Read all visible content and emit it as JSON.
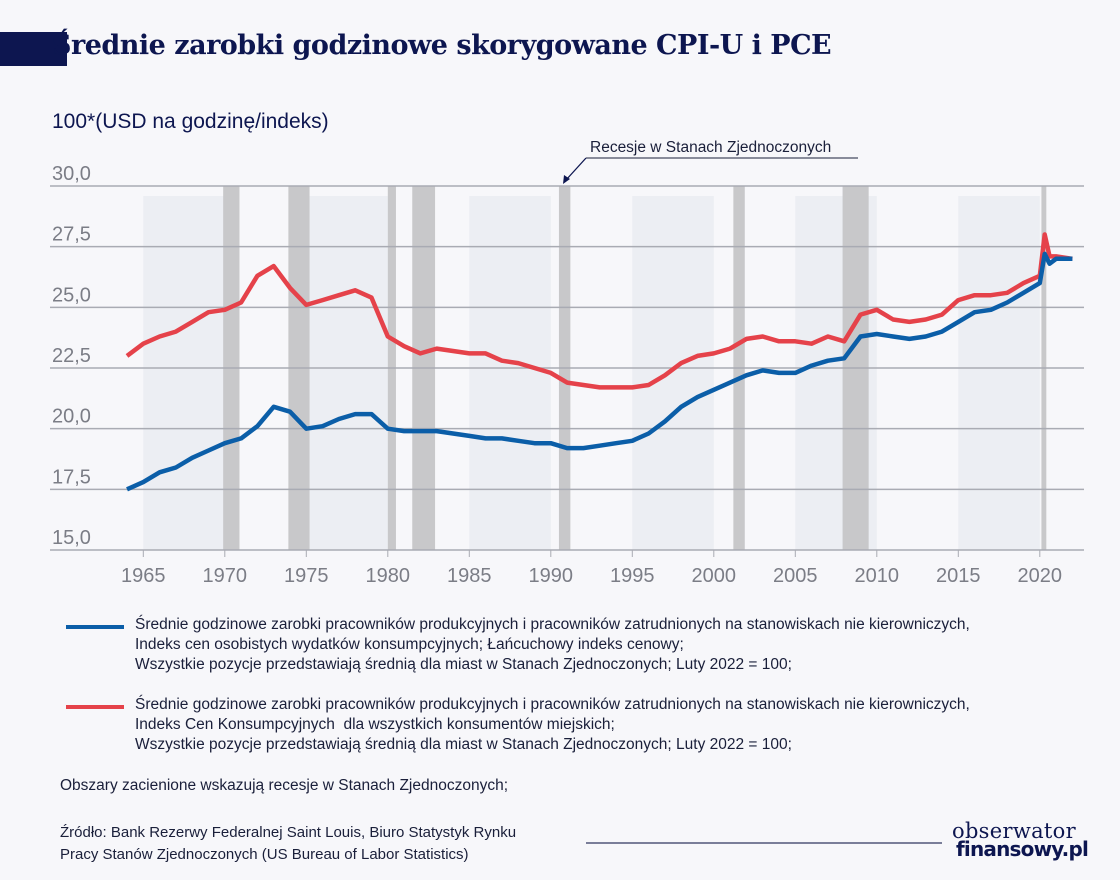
{
  "title": "Średnie zarobki godzinowe skorygowane CPI-U i PCE",
  "colors": {
    "title": "#0d1650",
    "cpi_series": "#e5424a",
    "pce_series": "#0b5ea8",
    "recession": "#c8c8ca",
    "band": "#eceef3"
  },
  "chart_data": {
    "type": "line",
    "title": "Średnie zarobki godzinowe skorygowane CPI-U i PCE",
    "ylabel": "100*(USD na godzinę/indeks)",
    "xlabel": "",
    "xlim": [
      1963.6,
      2023.5
    ],
    "ylim": [
      15.0,
      30.0
    ],
    "yticks": [
      "15,0",
      "17,5",
      "20,0",
      "22,5",
      "25,0",
      "27,5",
      "30,0"
    ],
    "ytick_values": [
      15,
      17.5,
      20,
      22.5,
      25,
      27.5,
      30
    ],
    "xticks": [
      "1965",
      "1970",
      "1975",
      "1980",
      "1985",
      "1990",
      "1995",
      "2000",
      "2005",
      "2010",
      "2015",
      "2020"
    ],
    "xtick_values": [
      1965,
      1970,
      1975,
      1980,
      1985,
      1990,
      1995,
      2000,
      2005,
      2010,
      2015,
      2020
    ],
    "grid": true,
    "legend_placement": "bottom",
    "annotation": "Recesje w Stanach Zjednoczonych",
    "recessions": [
      [
        1969.9,
        1970.9
      ],
      [
        1973.9,
        1975.2
      ],
      [
        1980.0,
        1980.5
      ],
      [
        1981.5,
        1982.9
      ],
      [
        1990.5,
        1991.2
      ],
      [
        2001.2,
        2001.9
      ],
      [
        2007.9,
        2009.5
      ],
      [
        2020.1,
        2020.4
      ]
    ],
    "series": [
      {
        "name": "Średnie godzinowe zarobki pracowników produkcyjnych i pracowników zatrudnionych na stanowiskach nie kierowniczych, Indeks Cen Konsumpcyjnych dla wszystkich konsumentów miejskich",
        "color": "#e5424a",
        "x": [
          1964,
          1965,
          1966,
          1967,
          1968,
          1969,
          1970,
          1971,
          1972,
          1973,
          1974,
          1975,
          1976,
          1977,
          1978,
          1979,
          1980,
          1981,
          1982,
          1983,
          1984,
          1985,
          1986,
          1987,
          1988,
          1989,
          1990,
          1991,
          1992,
          1993,
          1994,
          1995,
          1996,
          1997,
          1998,
          1999,
          2000,
          2001,
          2002,
          2003,
          2004,
          2005,
          2006,
          2007,
          2008,
          2009,
          2010,
          2011,
          2012,
          2013,
          2014,
          2015,
          2016,
          2017,
          2018,
          2019,
          2020,
          2020.3,
          2020.6,
          2021,
          2022
        ],
        "y": [
          23.0,
          23.5,
          23.8,
          24.0,
          24.4,
          24.8,
          24.9,
          25.2,
          26.3,
          26.7,
          25.8,
          25.1,
          25.3,
          25.5,
          25.7,
          25.4,
          23.8,
          23.4,
          23.1,
          23.3,
          23.2,
          23.1,
          23.1,
          22.8,
          22.7,
          22.5,
          22.3,
          21.9,
          21.8,
          21.7,
          21.7,
          21.7,
          21.8,
          22.2,
          22.7,
          23.0,
          23.1,
          23.3,
          23.7,
          23.8,
          23.6,
          23.6,
          23.5,
          23.8,
          23.6,
          24.7,
          24.9,
          24.5,
          24.4,
          24.5,
          24.7,
          25.3,
          25.5,
          25.5,
          25.6,
          26.0,
          26.3,
          28.0,
          27.1,
          27.1,
          27.0
        ]
      },
      {
        "name": "Średnie godzinowe zarobki pracowników produkcyjnych i pracowników zatrudnionych na stanowiskach nie kierowniczych, Indeks cen osobistych wydatków konsumpcyjnych; Łańcuchowy indeks cenowy",
        "color": "#0b5ea8",
        "x": [
          1964,
          1965,
          1966,
          1967,
          1968,
          1969,
          1970,
          1971,
          1972,
          1973,
          1974,
          1975,
          1976,
          1977,
          1978,
          1979,
          1980,
          1981,
          1982,
          1983,
          1984,
          1985,
          1986,
          1987,
          1988,
          1989,
          1990,
          1991,
          1992,
          1993,
          1994,
          1995,
          1996,
          1997,
          1998,
          1999,
          2000,
          2001,
          2002,
          2003,
          2004,
          2005,
          2006,
          2007,
          2008,
          2009,
          2010,
          2011,
          2012,
          2013,
          2014,
          2015,
          2016,
          2017,
          2018,
          2019,
          2020,
          2020.3,
          2020.6,
          2021,
          2022
        ],
        "y": [
          17.5,
          17.8,
          18.2,
          18.4,
          18.8,
          19.1,
          19.4,
          19.6,
          20.1,
          20.9,
          20.7,
          20.0,
          20.1,
          20.4,
          20.6,
          20.6,
          20.0,
          19.9,
          19.9,
          19.9,
          19.8,
          19.7,
          19.6,
          19.6,
          19.5,
          19.4,
          19.4,
          19.2,
          19.2,
          19.3,
          19.4,
          19.5,
          19.8,
          20.3,
          20.9,
          21.3,
          21.6,
          21.9,
          22.2,
          22.4,
          22.3,
          22.3,
          22.6,
          22.8,
          22.9,
          23.8,
          23.9,
          23.8,
          23.7,
          23.8,
          24.0,
          24.4,
          24.8,
          24.9,
          25.2,
          25.6,
          26.0,
          27.2,
          26.8,
          27.0,
          27.0
        ]
      }
    ]
  },
  "legend": [
    {
      "color": "#0b5ea8",
      "lines": [
        "Średnie godzinowe zarobki pracowników produkcyjnych i pracowników zatrudnionych na stanowiskach nie kierowniczych,",
        "Indeks cen osobistych wydatków konsumpcyjnych; Łańcuchowy indeks cenowy;",
        "Wszystkie pozycje przedstawiają średnią dla miast w Stanach Zjednoczonych; Luty 2022 = 100;"
      ]
    },
    {
      "color": "#e5424a",
      "lines": [
        "Średnie godzinowe zarobki pracowników produkcyjnych i pracowników zatrudnionych na stanowiskach nie kierowniczych,",
        "Indeks Cen Konsumpcyjnych  dla wszystkich konsumentów miejskich;",
        "Wszystkie pozycje przedstawiają średnią dla miast w Stanach Zjednoczonych; Luty 2022 = 100;"
      ]
    }
  ],
  "note": "Obszary zacienione wskazują recesje w Stanach Zjednoczonych;",
  "source": [
    "Źródło: Bank Rezerwy Federalnej Saint Louis, Biuro Statystyk Rynku",
    "Pracy Stanów Zjednoczonych (US Bureau of Labor Statistics)"
  ],
  "logo": [
    "obserwator",
    "finansowy.pl"
  ]
}
